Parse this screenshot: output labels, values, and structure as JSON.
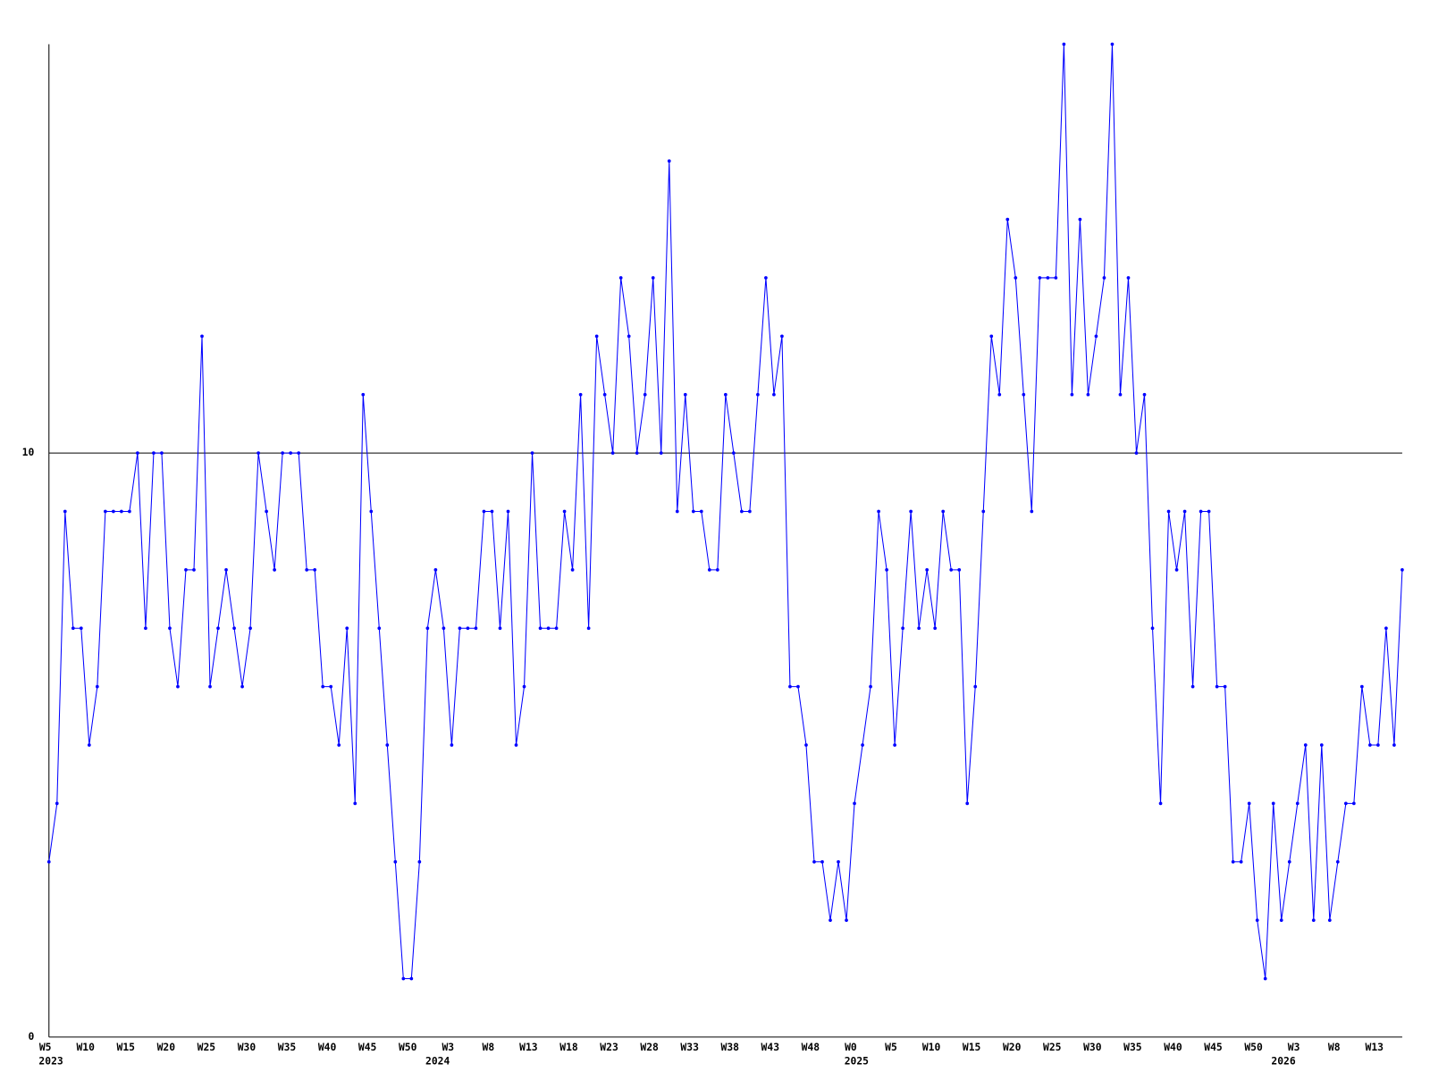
{
  "chart_data": {
    "type": "line",
    "categories": [
      "W5",
      null,
      null,
      null,
      null,
      "W10",
      null,
      null,
      null,
      null,
      "W15",
      null,
      null,
      null,
      null,
      "W20",
      null,
      null,
      null,
      null,
      "W25",
      null,
      null,
      null,
      null,
      "W30",
      null,
      null,
      null,
      null,
      "W35",
      null,
      null,
      null,
      null,
      "W40",
      null,
      null,
      null,
      null,
      "W45",
      null,
      null,
      null,
      null,
      "W50",
      null,
      null,
      null,
      null,
      "W3",
      null,
      null,
      null,
      null,
      "W8",
      null,
      null,
      null,
      null,
      "W13",
      null,
      null,
      null,
      null,
      "W18",
      null,
      null,
      null,
      null,
      "W23",
      null,
      null,
      null,
      null,
      "W28",
      null,
      null,
      null,
      null,
      "W33",
      null,
      null,
      null,
      null,
      "W38",
      null,
      null,
      null,
      null,
      "W43",
      null,
      null,
      null,
      null,
      "W48",
      null,
      null,
      null,
      null,
      "W0",
      null,
      null,
      null,
      null,
      "W5",
      null,
      null,
      null,
      null,
      "W10",
      null,
      null,
      null,
      null,
      "W15",
      null,
      null,
      null,
      null,
      "W20",
      null,
      null,
      null,
      null,
      "W25",
      null,
      null,
      null,
      null,
      "W30",
      null,
      null,
      null,
      null,
      "W35",
      null,
      null,
      null,
      null,
      "W40",
      null,
      null,
      null,
      null,
      "W45",
      null,
      null,
      null,
      null,
      "W50",
      null,
      null,
      null,
      null,
      "W3",
      null,
      null,
      null,
      null,
      "W8",
      null,
      null,
      null,
      null,
      "W13",
      null,
      null,
      null
    ],
    "years": [
      "2023",
      null,
      null,
      null,
      null,
      null,
      null,
      null,
      null,
      null,
      null,
      null,
      null,
      null,
      null,
      null,
      null,
      null,
      null,
      null,
      null,
      null,
      null,
      null,
      null,
      null,
      null,
      null,
      null,
      null,
      null,
      null,
      null,
      null,
      null,
      null,
      null,
      null,
      null,
      null,
      null,
      null,
      null,
      null,
      null,
      null,
      null,
      null,
      "2024",
      null,
      null,
      null,
      null,
      null,
      null,
      null,
      null,
      null,
      null,
      null,
      null,
      null,
      null,
      null,
      null,
      null,
      null,
      null,
      null,
      null,
      null,
      null,
      null,
      null,
      null,
      null,
      null,
      null,
      null,
      null,
      null,
      null,
      null,
      null,
      null,
      null,
      null,
      null,
      null,
      null,
      null,
      null,
      null,
      null,
      null,
      null,
      null,
      null,
      null,
      null,
      "2025",
      null,
      null,
      null,
      null,
      null,
      null,
      null,
      null,
      null,
      null,
      null,
      null,
      null,
      null,
      null,
      null,
      null,
      null,
      null,
      null,
      null,
      null,
      null,
      null,
      null,
      null,
      null,
      null,
      null,
      null,
      null,
      null,
      null,
      null,
      null,
      null,
      null,
      null,
      null,
      null,
      null,
      null,
      null,
      null,
      null,
      null,
      null,
      null,
      null,
      null,
      null,
      null,
      "2026",
      null,
      null,
      null,
      null,
      null,
      null,
      null,
      null,
      null,
      null,
      null,
      null,
      null,
      null,
      null
    ],
    "values": [
      3,
      4,
      9,
      7,
      7,
      5,
      6,
      9,
      9,
      9,
      9,
      10,
      7,
      10,
      10,
      7,
      6,
      8,
      8,
      12,
      6,
      7,
      8,
      7,
      6,
      7,
      10,
      9,
      8,
      10,
      10,
      10,
      8,
      8,
      6,
      6,
      5,
      7,
      4,
      11,
      9,
      7,
      5,
      3,
      1,
      1,
      3,
      7,
      8,
      7,
      5,
      7,
      7,
      7,
      9,
      9,
      7,
      9,
      5,
      6,
      10,
      7,
      7,
      7,
      9,
      8,
      11,
      7,
      12,
      11,
      10,
      13,
      12,
      10,
      11,
      13,
      10,
      15,
      9,
      11,
      9,
      9,
      8,
      8,
      11,
      10,
      9,
      9,
      11,
      13,
      11,
      12,
      6,
      6,
      5,
      3,
      3,
      2,
      3,
      2,
      4,
      5,
      6,
      9,
      8,
      5,
      7,
      9,
      7,
      8,
      7,
      9,
      8,
      8,
      4,
      6,
      9,
      12,
      11,
      14,
      13,
      11,
      9,
      13,
      13,
      13,
      17,
      11,
      14,
      11,
      12,
      13,
      17,
      11,
      13,
      10,
      11,
      7,
      4,
      9,
      8,
      9,
      6,
      9,
      9,
      6,
      6,
      3,
      3,
      4,
      2,
      1,
      4,
      2,
      3,
      4,
      5,
      2,
      5,
      2,
      3,
      4,
      4,
      6,
      5,
      5,
      7,
      5,
      8
    ],
    "color": "#0000ff",
    "ylim": [
      0,
      17
    ],
    "yticks": [
      0,
      10
    ],
    "grid": true
  }
}
